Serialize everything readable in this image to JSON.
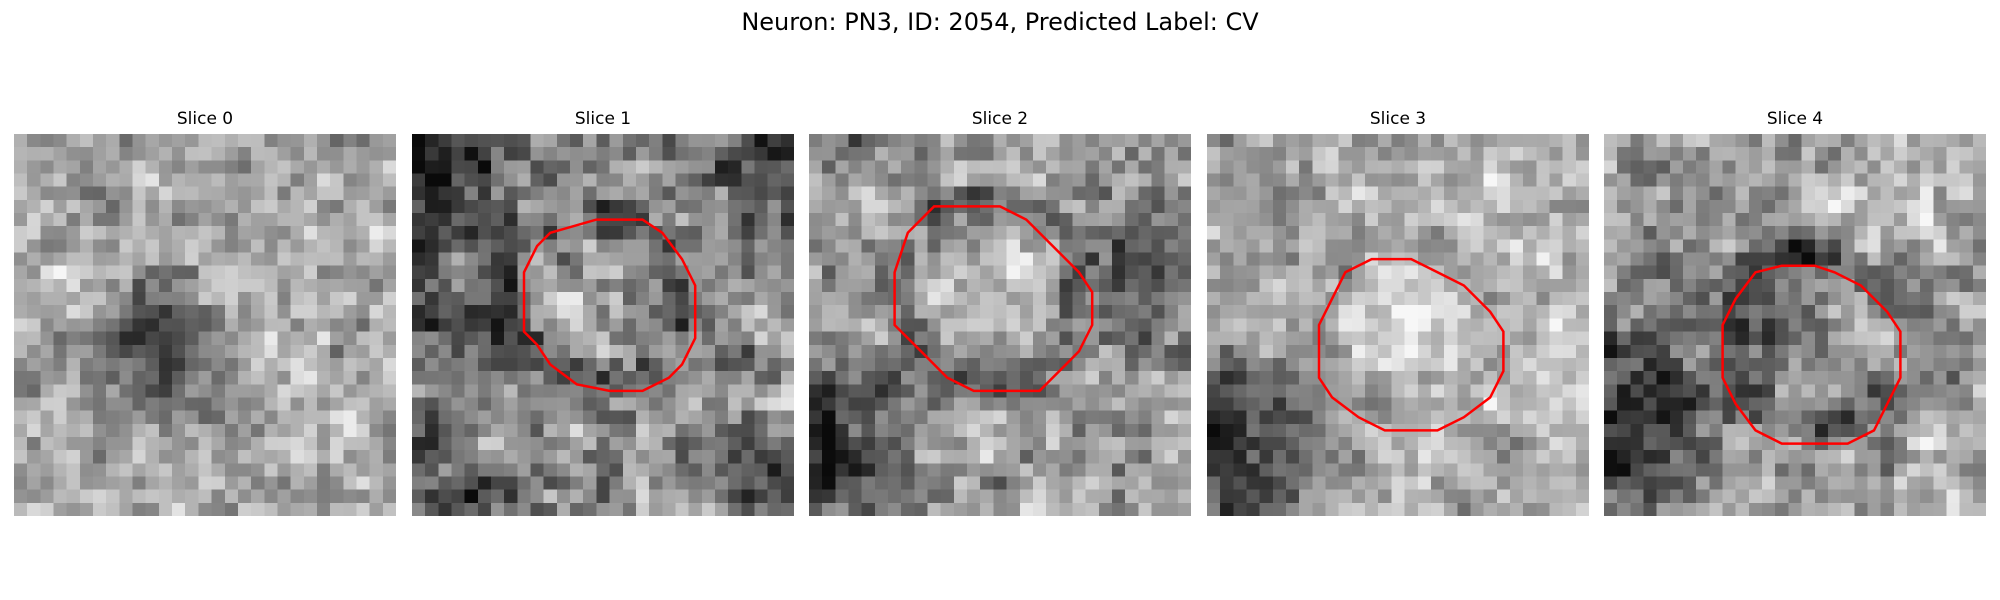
{
  "figure": {
    "title": "Neuron: PN3, ID: 2054, Predicted Label: CV"
  },
  "colors": {
    "contour": "#ff0000",
    "background": "#ffffff"
  },
  "panels": [
    {
      "title": "Slice 0",
      "has_contour": false
    },
    {
      "title": "Slice 1",
      "has_contour": true
    },
    {
      "title": "Slice 2",
      "has_contour": true
    },
    {
      "title": "Slice 3",
      "has_contour": true
    },
    {
      "title": "Slice 4",
      "has_contour": true
    }
  ]
}
